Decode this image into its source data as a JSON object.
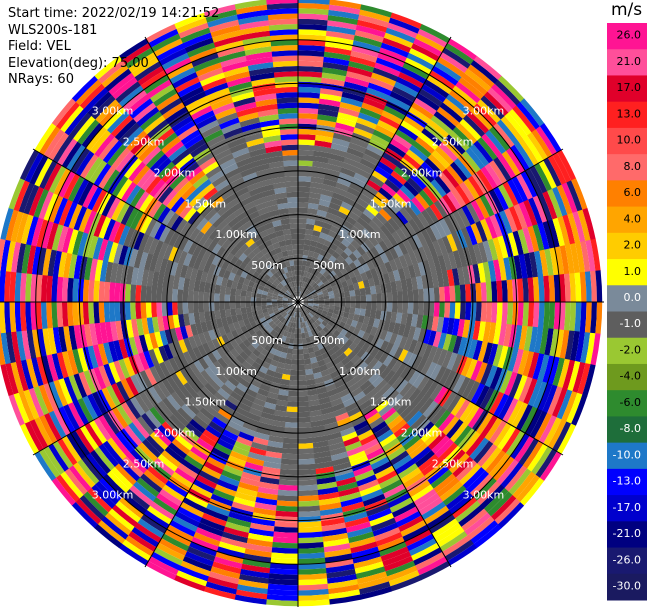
{
  "header": {
    "start_time": "Start time: 2022/02/19 14:21:52",
    "station": "WLS200s-181",
    "field": "Field: VEL",
    "elevation": "Elevation(deg): 75.00",
    "nrays": "NRays: 60"
  },
  "colorbar": {
    "unit": "m/s",
    "labels": [
      "26.0",
      "21.0",
      "17.0",
      "13.0",
      "10.0",
      "8.0",
      "6.0",
      "4.0",
      "2.0",
      "1.0",
      "0.0",
      "-1.0",
      "-2.0",
      "-4.0",
      "-6.0",
      "-8.0",
      "-10.0",
      "-13.0",
      "-17.0",
      "-21.0",
      "-26.0",
      "-30.0"
    ],
    "colors": [
      "#ff1493",
      "#ff4f9a",
      "#e0002a",
      "#ff2020",
      "#ff4a4a",
      "#ff6a6a",
      "#ff8000",
      "#ffa500",
      "#ffcc00",
      "#ffff00",
      "#7a8a9a",
      "#5e5e5e",
      "#9ac832",
      "#6e9a1e",
      "#2e8b2e",
      "#1e6e3a",
      "#1e78c8",
      "#0000ff",
      "#0000cd",
      "#000080",
      "#191970",
      "#1a1a60"
    ]
  },
  "chart_data": {
    "type": "heatmap",
    "subtype": "polar PPI scan",
    "field": "VEL",
    "nrays": 60,
    "elevation_deg": 75.0,
    "range_rings": [
      "500m",
      "1.00km",
      "1.50km",
      "2.00km",
      "2.50km",
      "3.00km"
    ],
    "range_rings_km": [
      0.5,
      1.0,
      1.5,
      2.0,
      2.5,
      3.0
    ],
    "max_range_km": 3.5,
    "inner_region_value_ms": 0.0,
    "colormap_bounds": [
      30.0,
      26.0,
      21.0,
      17.0,
      13.0,
      10.0,
      8.0,
      6.0,
      4.0,
      2.0,
      1.0,
      0.0,
      -1.0,
      -2.0,
      -4.0,
      -6.0,
      -8.0,
      -10.0,
      -13.0,
      -17.0,
      -21.0,
      -26.0,
      -30.0
    ]
  }
}
